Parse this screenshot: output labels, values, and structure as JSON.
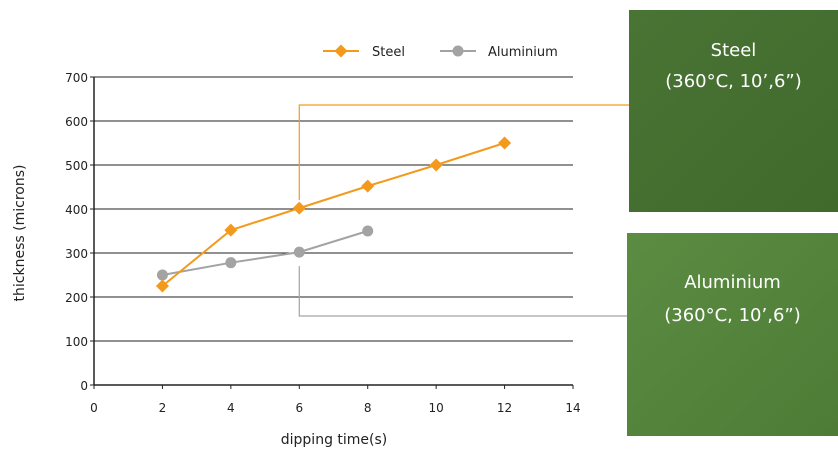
{
  "chart_data": {
    "type": "line",
    "xlabel": "dipping time(s)",
    "ylabel": "thickness (microns)",
    "xlim": [
      0,
      14
    ],
    "ylim": [
      0,
      700
    ],
    "x_ticks": [
      0,
      2,
      4,
      6,
      8,
      10,
      12,
      14
    ],
    "y_ticks": [
      0,
      100,
      200,
      300,
      400,
      500,
      600,
      700
    ],
    "grid": "horizontal",
    "legend": "top",
    "series": [
      {
        "name": "Steel",
        "marker": "diamond",
        "color": "#f39a1d",
        "x": [
          2,
          4,
          6,
          8,
          10,
          12
        ],
        "values": [
          225,
          352,
          402,
          452,
          500,
          550
        ]
      },
      {
        "name": "Aluminium",
        "marker": "circle",
        "color": "#a3a3a3",
        "x": [
          2,
          4,
          6,
          8
        ],
        "values": [
          250,
          278,
          302,
          350
        ]
      }
    ]
  },
  "panels": {
    "steel": {
      "line1": "Steel",
      "line2": "(360°C, 10’,6”)",
      "color": "#4e7a36"
    },
    "aluminium": {
      "line1": "Aluminium",
      "line2": "(360°C, 10’,6”)",
      "color": "#5a8a40"
    }
  }
}
